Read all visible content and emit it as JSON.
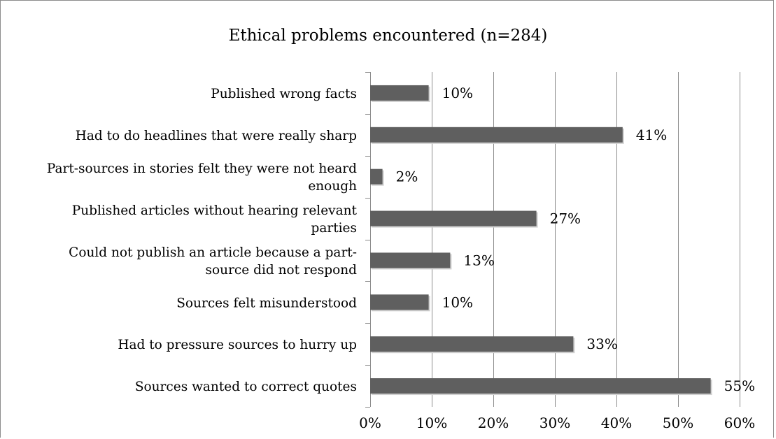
{
  "chart_data": {
    "type": "bar",
    "orientation": "horizontal",
    "title": "Ethical problems encountered  (n=284)",
    "categories": [
      "Published wrong facts",
      "Had to do headlines that were really sharp",
      "Part-sources in stories felt they were not heard enough",
      "Published articles without hearing relevant parties",
      "Could not publish an article because a part-source did not respond",
      "Sources felt misunderstood",
      "Had to pressure sources to hurry up",
      "Sources wanted to correct quotes"
    ],
    "category_lines": [
      [
        "Published wrong facts"
      ],
      [
        "Had to do headlines that were really sharp"
      ],
      [
        "Part-sources in stories felt they were not heard",
        "enough"
      ],
      [
        "Published articles without hearing relevant",
        "parties"
      ],
      [
        "Could not publish an article because a part-",
        "source did not respond"
      ],
      [
        "Sources felt misunderstood"
      ],
      [
        "Had to pressure sources to hurry up"
      ],
      [
        "Sources wanted to correct quotes"
      ]
    ],
    "values": [
      9.5,
      41,
      2,
      27,
      13,
      9.5,
      33,
      55.3
    ],
    "data_labels": [
      "10%",
      "41%",
      "2%",
      "27%",
      "13%",
      "10%",
      "33%",
      "55%"
    ],
    "xlim": [
      0,
      60
    ],
    "xticks": [
      0,
      10,
      20,
      30,
      40,
      50,
      60
    ],
    "xtick_labels": [
      "0%",
      "10%",
      "20%",
      "30%",
      "40%",
      "50%",
      "60%"
    ],
    "grid": true,
    "legend": "none",
    "bar_color": "#5f5f5f",
    "grid_color": "#8c8c8c"
  }
}
